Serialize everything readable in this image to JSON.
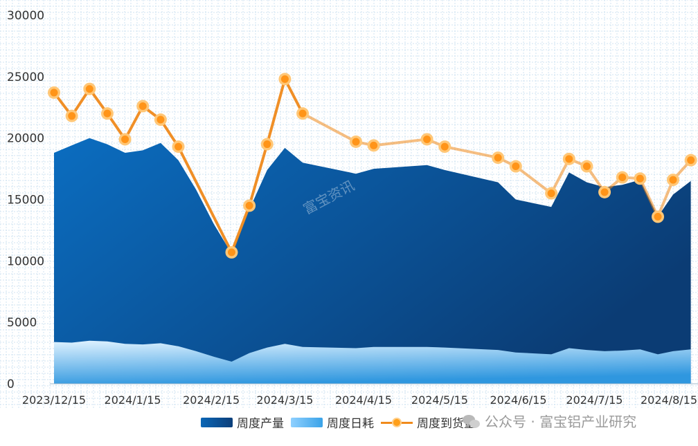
{
  "chart_data": {
    "type": "area",
    "ylim": [
      0,
      30000
    ],
    "y_ticks": [
      "0",
      "5000",
      "10000",
      "15000",
      "20000",
      "25000",
      "30000"
    ],
    "x_ticks": [
      "2023/12/15",
      "2024/1/15",
      "2024/2/15",
      "2024/3/15",
      "2024/4/15",
      "2024/5/15",
      "2024/6/15",
      "2024/7/15",
      "2024/8/15"
    ],
    "grid": "dotted",
    "series": [
      {
        "name": "周度产量",
        "kind": "area",
        "points": [
          [
            "2023/12/15",
            18800
          ],
          [
            "2023/12/22",
            19400
          ],
          [
            "2023/12/29",
            20000
          ],
          [
            "2024/1/5",
            19500
          ],
          [
            "2024/1/12",
            18800
          ],
          [
            "2024/1/19",
            19000
          ],
          [
            "2024/1/26",
            19600
          ],
          [
            "2024/2/2",
            18200
          ],
          [
            "2024/2/9",
            15800
          ],
          [
            "2024/2/16",
            13000
          ],
          [
            "2024/2/23",
            10600
          ],
          [
            "2024/3/1",
            14200
          ],
          [
            "2024/3/8",
            17400
          ],
          [
            "2024/3/15",
            19200
          ],
          [
            "2024/3/22",
            18000
          ],
          [
            "2024/4/12",
            17100
          ],
          [
            "2024/4/19",
            17500
          ],
          [
            "2024/5/10",
            17800
          ],
          [
            "2024/5/17",
            17400
          ],
          [
            "2024/6/7",
            16400
          ],
          [
            "2024/6/14",
            15000
          ],
          [
            "2024/6/28",
            14400
          ],
          [
            "2024/7/5",
            17200
          ],
          [
            "2024/7/12",
            16400
          ],
          [
            "2024/7/19",
            16000
          ],
          [
            "2024/7/26",
            16200
          ],
          [
            "2024/8/2",
            16600
          ],
          [
            "2024/8/9",
            13600
          ],
          [
            "2024/8/15",
            15400
          ],
          [
            "2024/8/22",
            16500
          ]
        ]
      },
      {
        "name": "周度日耗",
        "kind": "area",
        "points": [
          [
            "2023/12/15",
            3400
          ],
          [
            "2023/12/22",
            3350
          ],
          [
            "2023/12/29",
            3500
          ],
          [
            "2024/1/5",
            3450
          ],
          [
            "2024/1/12",
            3250
          ],
          [
            "2024/1/19",
            3200
          ],
          [
            "2024/1/26",
            3300
          ],
          [
            "2024/2/2",
            3050
          ],
          [
            "2024/2/9",
            2650
          ],
          [
            "2024/2/16",
            2200
          ],
          [
            "2024/2/23",
            1800
          ],
          [
            "2024/3/1",
            2500
          ],
          [
            "2024/3/8",
            2950
          ],
          [
            "2024/3/15",
            3250
          ],
          [
            "2024/3/22",
            3000
          ],
          [
            "2024/4/12",
            2900
          ],
          [
            "2024/4/19",
            3000
          ],
          [
            "2024/5/10",
            3000
          ],
          [
            "2024/5/17",
            2950
          ],
          [
            "2024/6/7",
            2750
          ],
          [
            "2024/6/14",
            2550
          ],
          [
            "2024/6/28",
            2400
          ],
          [
            "2024/7/5",
            2900
          ],
          [
            "2024/7/12",
            2750
          ],
          [
            "2024/7/19",
            2650
          ],
          [
            "2024/7/26",
            2700
          ],
          [
            "2024/8/2",
            2800
          ],
          [
            "2024/8/9",
            2400
          ],
          [
            "2024/8/15",
            2650
          ],
          [
            "2024/8/22",
            2800
          ]
        ]
      },
      {
        "name": "周度到货量",
        "kind": "line",
        "points": [
          [
            "2023/12/15",
            23700
          ],
          [
            "2023/12/22",
            21800
          ],
          [
            "2023/12/29",
            24000
          ],
          [
            "2024/1/5",
            22000
          ],
          [
            "2024/1/12",
            19900
          ],
          [
            "2024/1/19",
            22600
          ],
          [
            "2024/1/26",
            21500
          ],
          [
            "2024/2/2",
            19300
          ],
          [
            "2024/2/23",
            10700
          ],
          [
            "2024/3/1",
            14500
          ],
          [
            "2024/3/8",
            19500
          ],
          [
            "2024/3/15",
            24800
          ],
          [
            "2024/3/22",
            22000
          ],
          [
            "2024/4/12",
            19700
          ],
          [
            "2024/4/19",
            19400
          ],
          [
            "2024/5/10",
            19900
          ],
          [
            "2024/5/17",
            19300
          ],
          [
            "2024/6/7",
            18400
          ],
          [
            "2024/6/14",
            17700
          ],
          [
            "2024/6/28",
            15500
          ],
          [
            "2024/7/5",
            18300
          ],
          [
            "2024/7/12",
            17700
          ],
          [
            "2024/7/19",
            15600
          ],
          [
            "2024/7/26",
            16800
          ],
          [
            "2024/8/2",
            16700
          ],
          [
            "2024/8/9",
            13600
          ],
          [
            "2024/8/15",
            16600
          ],
          [
            "2024/8/22",
            18200
          ]
        ]
      }
    ]
  },
  "legend": [
    {
      "label": "周度产量"
    },
    {
      "label": "周度日耗"
    },
    {
      "label": "周度到货量"
    }
  ],
  "watermark": "富宝资讯",
  "footer": "公众号 · 富宝铝产业研究",
  "colors": {
    "production_dark": "#0b3c74",
    "production_light": "#0b6dc0",
    "daily_light": "#dff2ff",
    "daily_dark": "#2f97df",
    "line": "#f08a1c",
    "marker_fill": "#ff9418",
    "marker_ring": "#ffc777",
    "grid": "#cfe3f2"
  }
}
